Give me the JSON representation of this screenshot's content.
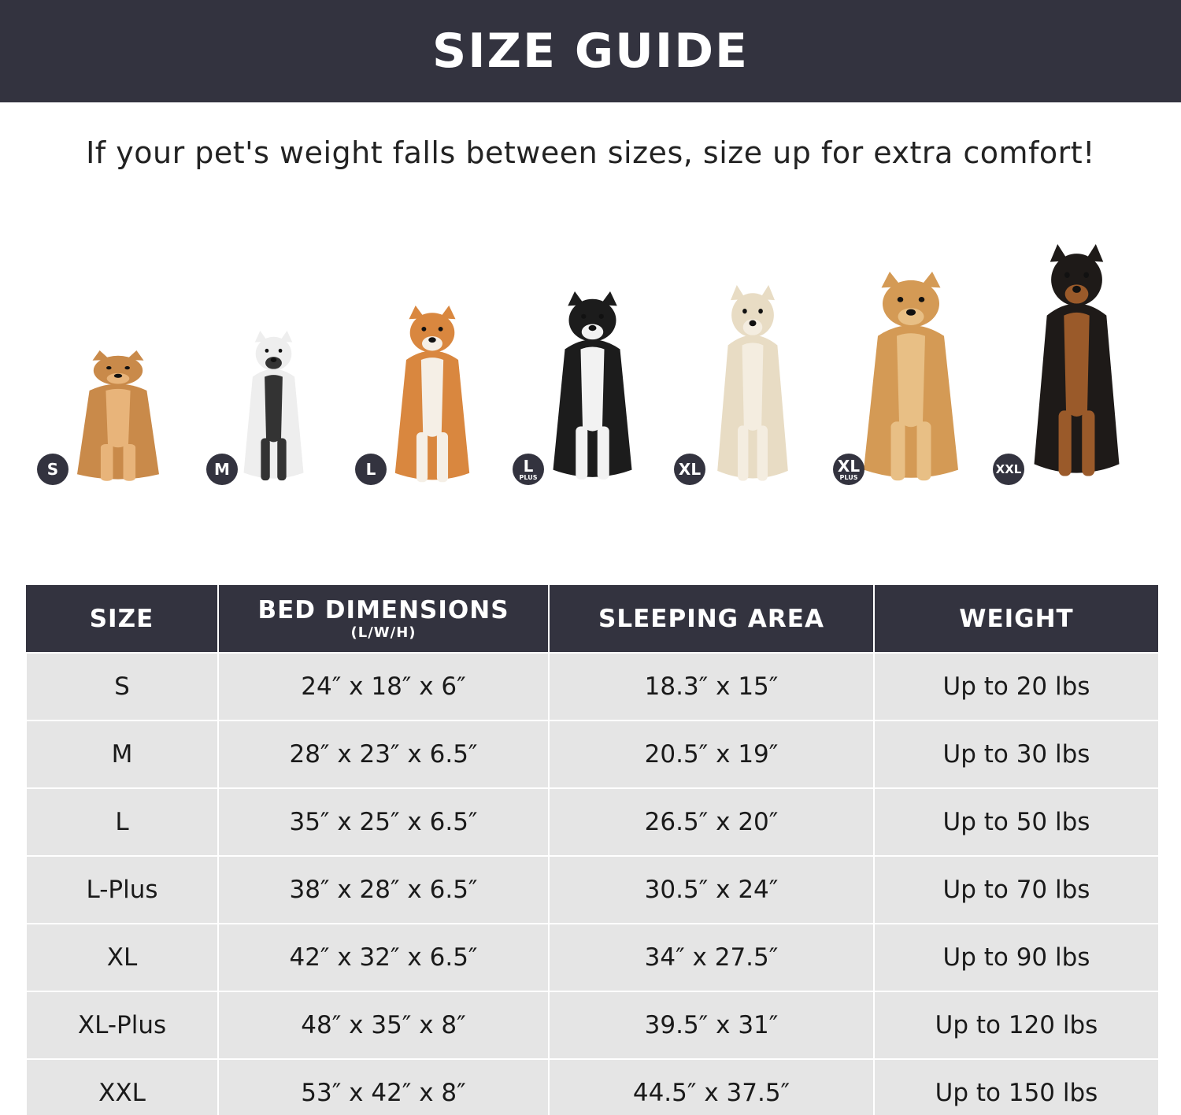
{
  "header": {
    "title": "SIZE GUIDE"
  },
  "subtitle": "If your pet's weight falls between sizes, size up for extra comfort!",
  "dogs": [
    {
      "badge": "S",
      "plus": "",
      "color": "#c98a4a",
      "accent": "#e8b47a"
    },
    {
      "badge": "M",
      "plus": "",
      "color": "#eeeeee",
      "accent": "#333333"
    },
    {
      "badge": "L",
      "plus": "",
      "color": "#d9873f",
      "accent": "#f5efe6"
    },
    {
      "badge": "L",
      "plus": "PLUS",
      "color": "#1c1c1c",
      "accent": "#f2f2f2"
    },
    {
      "badge": "XL",
      "plus": "",
      "color": "#e8dcc4",
      "accent": "#f4ede0"
    },
    {
      "badge": "XL",
      "plus": "PLUS",
      "color": "#d49a55",
      "accent": "#e8bf85"
    },
    {
      "badge": "XXL",
      "plus": "",
      "color": "#1e1a18",
      "accent": "#9a5a2a"
    }
  ],
  "table": {
    "headers": [
      {
        "label": "SIZE",
        "note": ""
      },
      {
        "label": "BED DIMENSIONS",
        "note": "(L/W/H)"
      },
      {
        "label": "SLEEPING AREA",
        "note": ""
      },
      {
        "label": "WEIGHT",
        "note": ""
      }
    ],
    "rows": [
      [
        "S",
        "24″ x 18″ x 6″",
        "18.3″ x 15″",
        "Up to 20 lbs"
      ],
      [
        "M",
        "28″ x 23″ x 6.5″",
        "20.5″ x 19″",
        "Up to 30 lbs"
      ],
      [
        "L",
        "35″ x 25″ x 6.5″",
        "26.5″ x 20″",
        "Up to 50 lbs"
      ],
      [
        "L-Plus",
        "38″ x 28″ x 6.5″",
        "30.5″ x 24″",
        "Up to 70 lbs"
      ],
      [
        "XL",
        "42″ x 32″ x 6.5″",
        "34″ x 27.5″",
        "Up to 90 lbs"
      ],
      [
        "XL-Plus",
        "48″ x 35″ x 8″",
        "39.5″ x 31″",
        "Up to 120 lbs"
      ],
      [
        "XXL",
        "53″ x 42″ x 8″",
        "44.5″ x 37.5″",
        "Up to 150 lbs"
      ]
    ]
  }
}
